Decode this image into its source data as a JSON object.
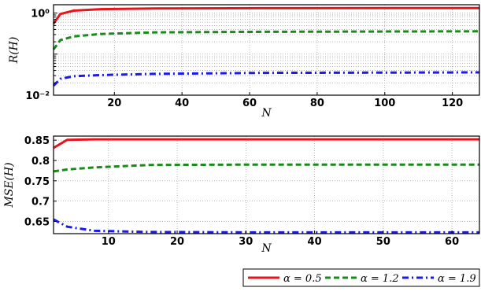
{
  "chart_data": [
    {
      "type": "line",
      "yscale": "log",
      "xlabel": "N",
      "ylabel": "R(H)",
      "xlim": [
        2,
        128
      ],
      "ylim": [
        0.01,
        1.6
      ],
      "xticks": [
        20,
        40,
        60,
        80,
        100,
        120
      ],
      "xtick_labels": [
        "20",
        "40",
        "60",
        "80",
        "100",
        "120"
      ],
      "yticks": [
        0.01,
        1
      ],
      "ytick_labels": [
        "10⁻²",
        "10⁰"
      ],
      "grid": true,
      "series": [
        {
          "color": "#e8141c",
          "dash": "solid",
          "x": [
            2,
            4,
            8,
            16,
            32,
            64,
            128
          ],
          "y": [
            0.55,
            0.95,
            1.15,
            1.25,
            1.3,
            1.32,
            1.33
          ]
        },
        {
          "color": "#1a8a1a",
          "dash": "dashed",
          "x": [
            2,
            4,
            8,
            16,
            32,
            64,
            128
          ],
          "y": [
            0.13,
            0.22,
            0.27,
            0.31,
            0.34,
            0.35,
            0.36
          ]
        },
        {
          "color": "#1a1aee",
          "dash": "dashdot",
          "x": [
            2,
            4,
            8,
            16,
            32,
            64,
            128
          ],
          "y": [
            0.017,
            0.025,
            0.029,
            0.031,
            0.033,
            0.035,
            0.036
          ]
        }
      ]
    },
    {
      "type": "line",
      "xlabel": "N",
      "ylabel": "MSE(H)",
      "xlim": [
        2,
        64
      ],
      "ylim": [
        0.62,
        0.86
      ],
      "xticks": [
        10,
        20,
        30,
        40,
        50,
        60
      ],
      "xtick_labels": [
        "10",
        "20",
        "30",
        "40",
        "50",
        "60"
      ],
      "yticks": [
        0.65,
        0.7,
        0.75,
        0.8,
        0.85
      ],
      "ytick_labels": [
        "0.65",
        "0.7",
        "0.75",
        "0.8",
        "0.85"
      ],
      "grid": true,
      "series": [
        {
          "color": "#e8141c",
          "dash": "solid",
          "x": [
            2,
            4,
            8,
            16,
            32,
            64
          ],
          "y": [
            0.831,
            0.851,
            0.852,
            0.852,
            0.852,
            0.852
          ]
        },
        {
          "color": "#1a8a1a",
          "dash": "dashed",
          "x": [
            2,
            4,
            8,
            16,
            32,
            64
          ],
          "y": [
            0.773,
            0.778,
            0.783,
            0.789,
            0.79,
            0.79
          ]
        },
        {
          "color": "#1a1aee",
          "dash": "dashdot",
          "x": [
            2,
            4,
            8,
            16,
            32,
            64
          ],
          "y": [
            0.655,
            0.637,
            0.627,
            0.624,
            0.623,
            0.623
          ]
        }
      ]
    }
  ],
  "legend": {
    "placement": "bottom-right",
    "entries": [
      {
        "label": "α = 0.5",
        "color": "#e8141c",
        "dash": "solid"
      },
      {
        "label": "α = 1.2",
        "color": "#1a8a1a",
        "dash": "dashed"
      },
      {
        "label": "α = 1.9",
        "color": "#1a1aee",
        "dash": "dashdot"
      }
    ]
  }
}
